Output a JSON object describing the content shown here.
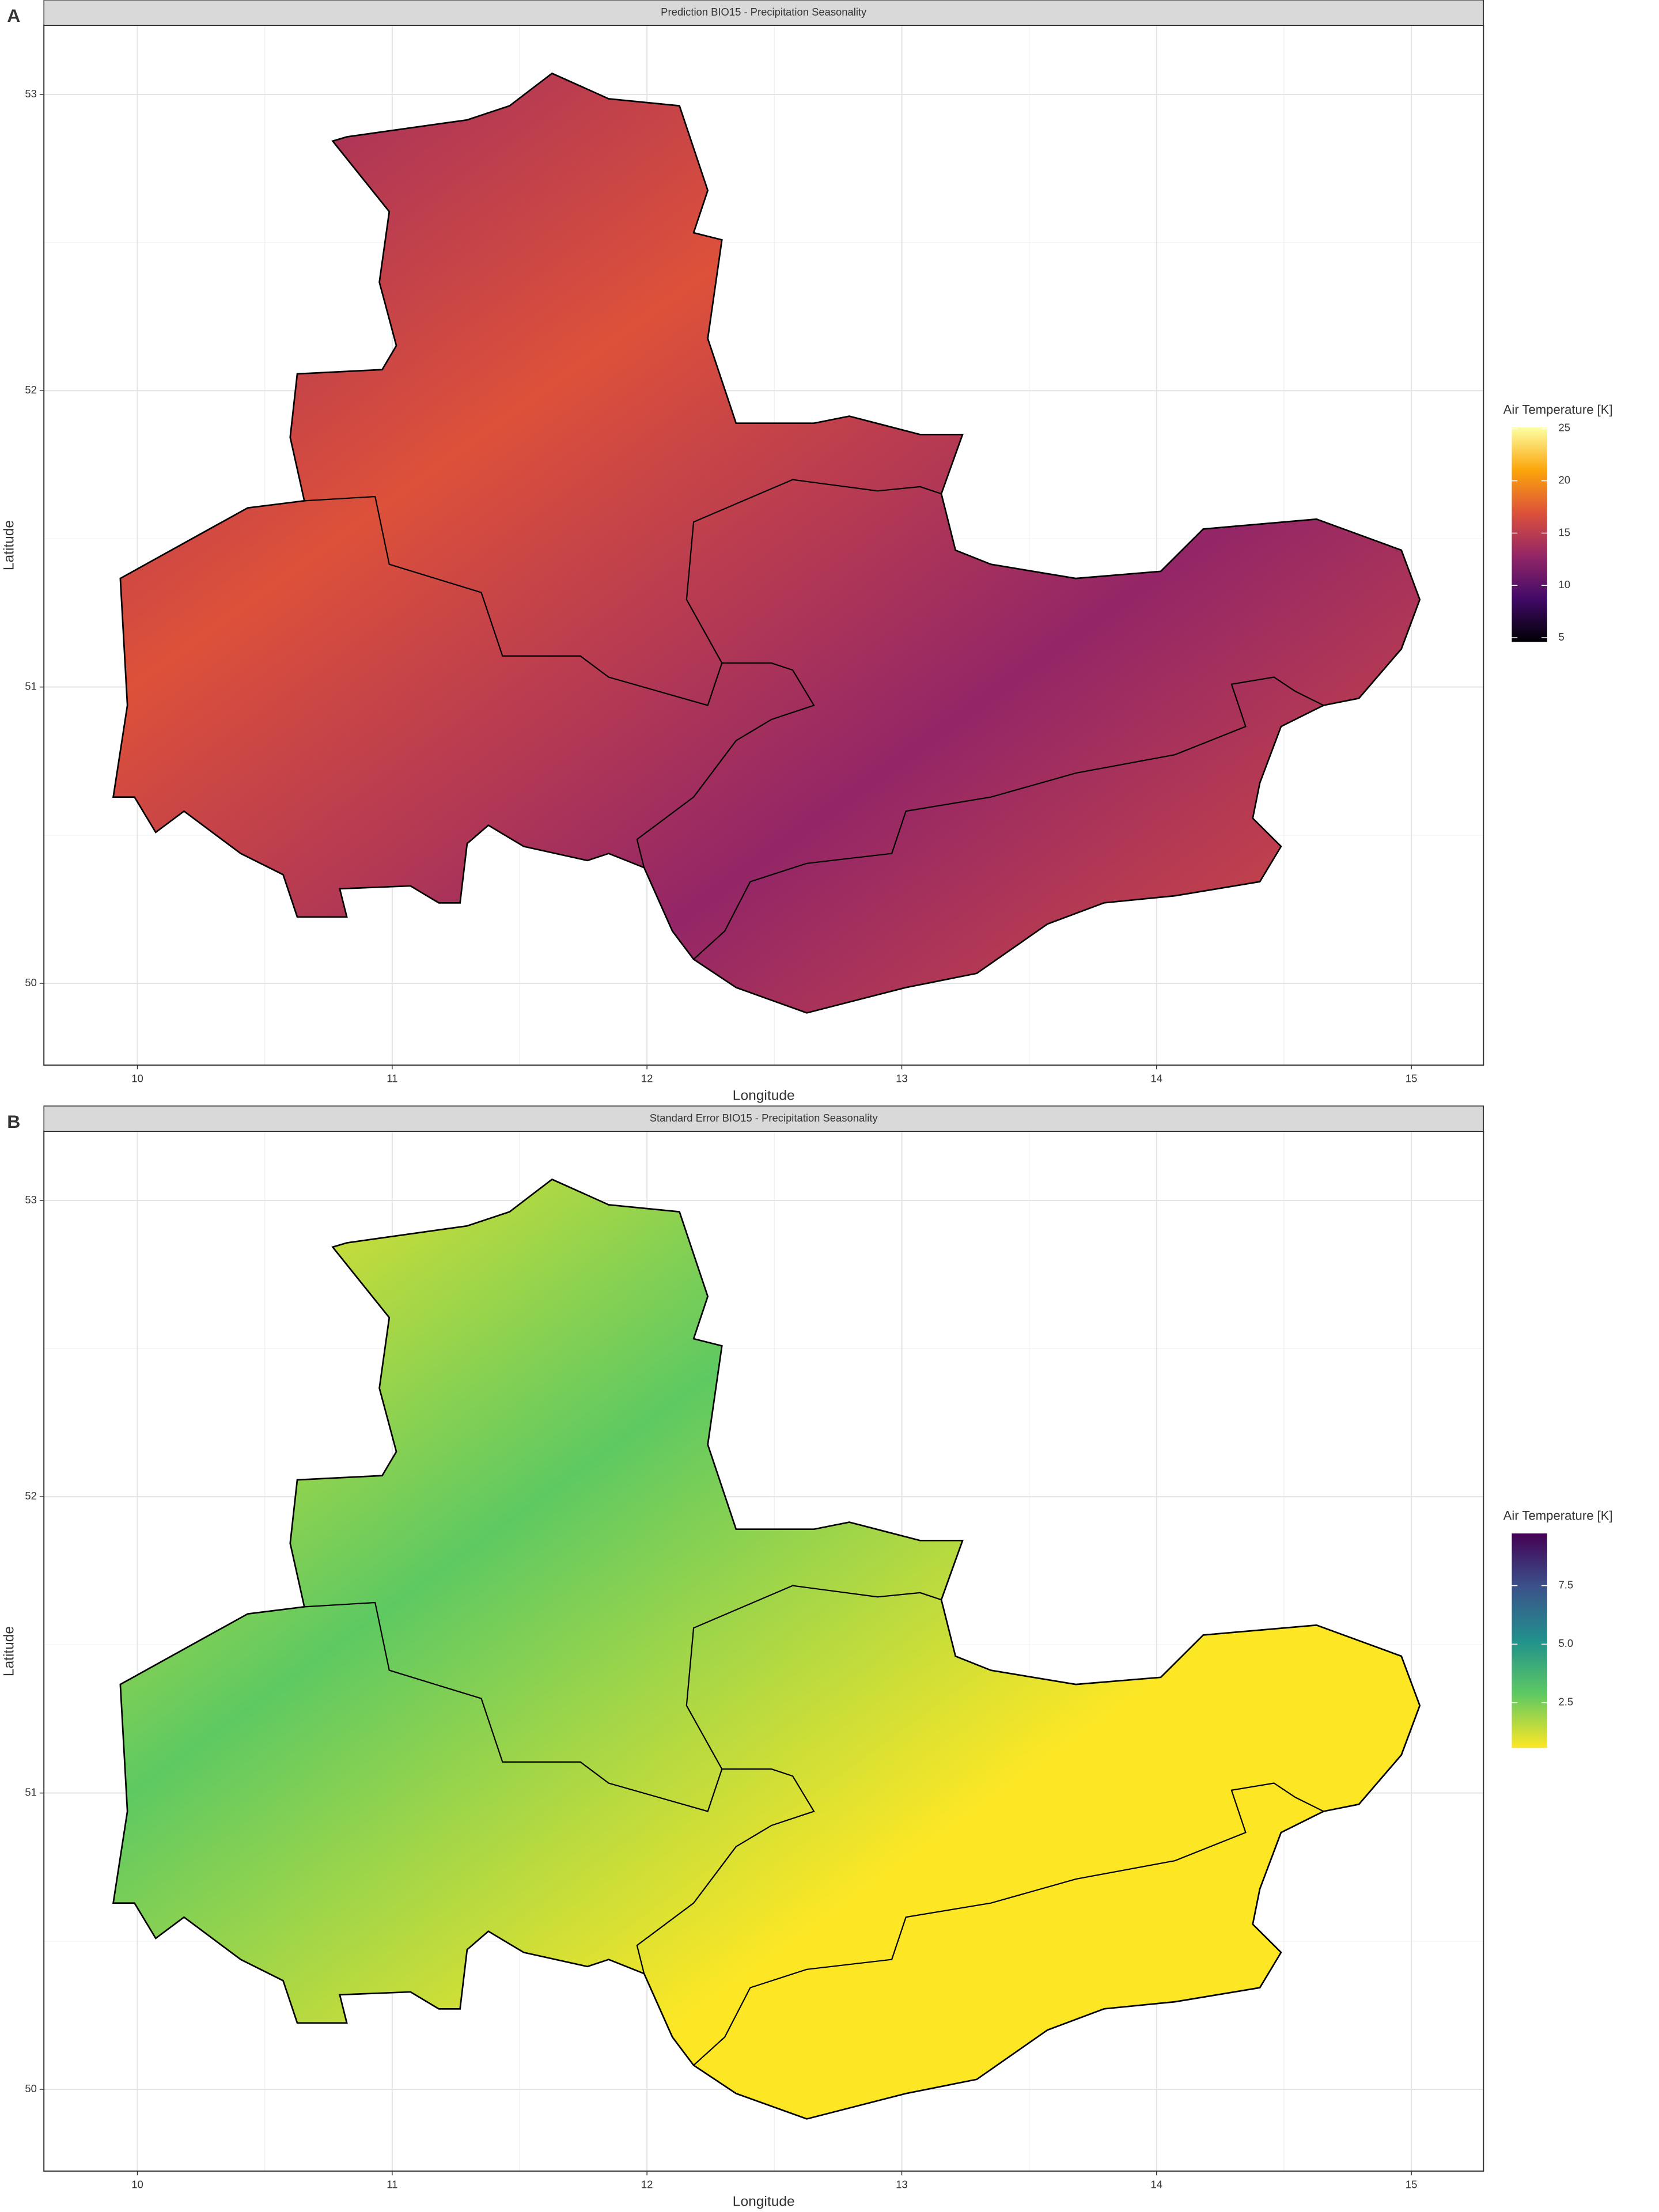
{
  "chart_data": [
    {
      "type": "map",
      "panel_label": "A",
      "title": "Prediction BIO15 - Precipitation Seasonality",
      "x_label": "Longitude",
      "y_label": "Latitude",
      "xlim": [
        9.633,
        15.283
      ],
      "xticks": [
        10,
        11,
        12,
        13,
        14,
        15
      ],
      "ylim": [
        49.724,
        53.233
      ],
      "yticks": [
        50,
        51,
        52,
        53
      ],
      "grid": true,
      "legend": {
        "title": "Air Temperature [K]",
        "limits": [
          4.6,
          25.1
        ],
        "ticks": [
          5,
          10,
          15,
          20,
          25
        ],
        "colors": [
          "#000004",
          "#420a68",
          "#932667",
          "#dd513a",
          "#fca50a",
          "#fcffa4"
        ]
      }
    },
    {
      "type": "map",
      "panel_label": "B",
      "title": "Standard Error BIO15 - Precipitation Seasonality",
      "x_label": "Longitude",
      "y_label": "Latitude",
      "xlim": [
        9.633,
        15.283
      ],
      "xticks": [
        10,
        11,
        12,
        13,
        14,
        15
      ],
      "ylim": [
        49.724,
        53.233
      ],
      "yticks": [
        50,
        51,
        52,
        53
      ],
      "grid": true,
      "legend": {
        "title": "Air Temperature [K]",
        "limits": [
          0.57,
          9.73
        ],
        "ticks": [
          2.5,
          {
            "value": 5,
            "label": "5.0"
          },
          7.5
        ],
        "colors": [
          "#fde725",
          "#5ec962",
          "#21918c",
          "#3b528b",
          "#440154"
        ]
      }
    }
  ]
}
